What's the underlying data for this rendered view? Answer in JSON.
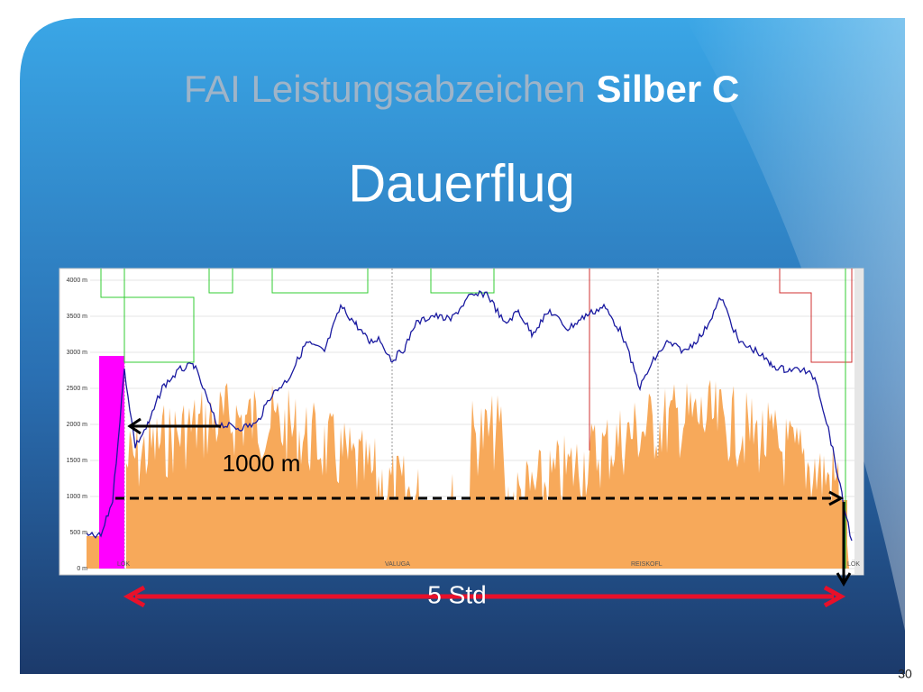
{
  "slide": {
    "title_part1": "FAI Leistungsabzeichen",
    "title_part2": "Silber C",
    "subtitle": "Dauerflug",
    "chart": {
      "y_tick_labels": [
        "4000 m",
        "3500 m",
        "3000 m",
        "2500 m",
        "2000 m",
        "1500 m",
        "1000 m",
        "500 m",
        "0 m"
      ],
      "waypoints": [
        "LÖK",
        "VALUGA",
        "REISKOFL",
        "LÖK"
      ]
    },
    "annotation_height": "1000 m",
    "annotation_duration": "5 Std",
    "page_number": "30"
  }
}
